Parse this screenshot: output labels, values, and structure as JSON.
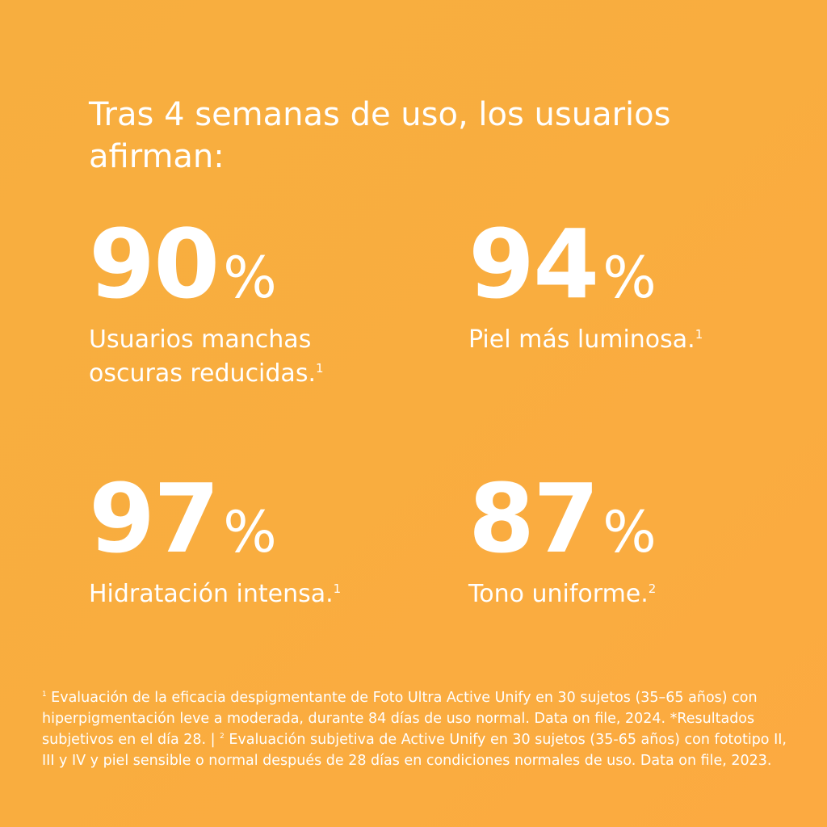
{
  "header": {
    "title_lines": [
      "Tras 4 semanas de uso, los usuarios",
      "afirman:"
    ]
  },
  "stats": [
    {
      "number": 90,
      "unit": "%",
      "label_lines": [
        "Usuarios manchas",
        "oscuras reducidas."
      ],
      "note": "1"
    },
    {
      "number": 94,
      "unit": "%",
      "label_lines": [
        "Piel más luminosa."
      ],
      "note": "1"
    },
    {
      "number": 97,
      "unit": "%",
      "label_lines": [
        "Hidratación intensa."
      ],
      "note": "1"
    },
    {
      "number": 87,
      "unit": "%",
      "label_lines": [
        "Tono uniforme."
      ],
      "note": "2"
    }
  ],
  "footnote": {
    "marker_1": "1",
    "text_1": "Evaluación de la eficacia despigmentante de Foto Ultra Active Unify en 30 sujetos (35–65 años) con hiperpigmentación leve a moderada, durante 84 días de uso normal. Data on file, 2024. *Resultados subjetivos en el día 28. |",
    "marker_2": "2",
    "text_2": "Evaluación subjetiva de Active Unify en 30 sujetos (35-65 años) con fototipo II, III y IV y piel sensible o normal después de 28 días en condiciones normales de uso. Data on file, 2023."
  }
}
